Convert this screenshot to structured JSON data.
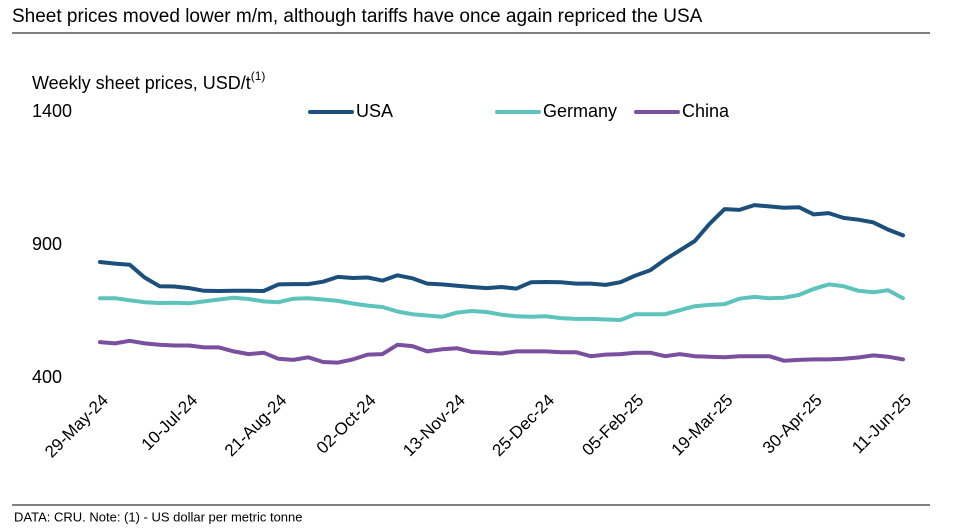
{
  "chart_data": {
    "type": "line",
    "title": "Sheet prices moved lower m/m, although tariffs have once again repriced the USA",
    "y_label": "Weekly sheet prices, USD/t",
    "y_label_note": "(1)",
    "footer": "DATA: CRU.  Note: (1) - US dollar per metric tonne",
    "categories": [
      "29-May-24",
      null,
      null,
      null,
      null,
      null,
      "10-Jul-24",
      null,
      null,
      null,
      null,
      null,
      "21-Aug-24",
      null,
      null,
      null,
      null,
      null,
      "02-Oct-24",
      null,
      null,
      null,
      null,
      null,
      "13-Nov-24",
      null,
      null,
      null,
      null,
      null,
      "25-Dec-24",
      null,
      null,
      null,
      null,
      null,
      "05-Feb-25",
      null,
      null,
      null,
      null,
      null,
      "19-Mar-25",
      null,
      null,
      null,
      null,
      null,
      "30-Apr-25",
      null,
      null,
      null,
      null,
      null,
      "11-Jun-25"
    ],
    "series": [
      {
        "name": "USA",
        "color": "#1b4f7c",
        "values": [
          836,
          830,
          826,
          778,
          745,
          744,
          738,
          728,
          727,
          728,
          728,
          727,
          752,
          753,
          753,
          762,
          780,
          776,
          778,
          766,
          786,
          775,
          755,
          752,
          747,
          742,
          738,
          742,
          736,
          760,
          761,
          760,
          755,
          755,
          750,
          760,
          785,
          805,
          845,
          880,
          915,
          980,
          1035,
          1032,
          1050,
          1045,
          1040,
          1042,
          1015,
          1020,
          1002,
          995,
          985,
          958,
          936
        ]
      },
      {
        "name": "Germany",
        "color": "#5cc3bd",
        "values": [
          700,
          700,
          692,
          685,
          682,
          683,
          681,
          688,
          695,
          702,
          697,
          688,
          685,
          698,
          700,
          695,
          690,
          680,
          672,
          667,
          650,
          640,
          635,
          630,
          646,
          652,
          648,
          638,
          632,
          630,
          632,
          625,
          622,
          622,
          620,
          618,
          640,
          640,
          640,
          655,
          670,
          675,
          678,
          698,
          705,
          700,
          702,
          712,
          735,
          752,
          745,
          728,
          722,
          730,
          700
        ]
      },
      {
        "name": "China",
        "color": "#7b4fa0",
        "values": [
          535,
          530,
          540,
          530,
          525,
          522,
          522,
          515,
          515,
          500,
          490,
          495,
          472,
          468,
          478,
          460,
          458,
          470,
          488,
          490,
          525,
          520,
          500,
          508,
          512,
          498,
          495,
          492,
          500,
          500,
          500,
          497,
          497,
          482,
          488,
          490,
          495,
          495,
          482,
          490,
          482,
          480,
          478,
          482,
          482,
          482,
          465,
          468,
          470,
          470,
          472,
          477,
          485,
          480,
          470
        ]
      }
    ],
    "ylim": [
      400,
      1400
    ],
    "yticks": [
      400,
      900,
      1400
    ],
    "grid": false
  }
}
